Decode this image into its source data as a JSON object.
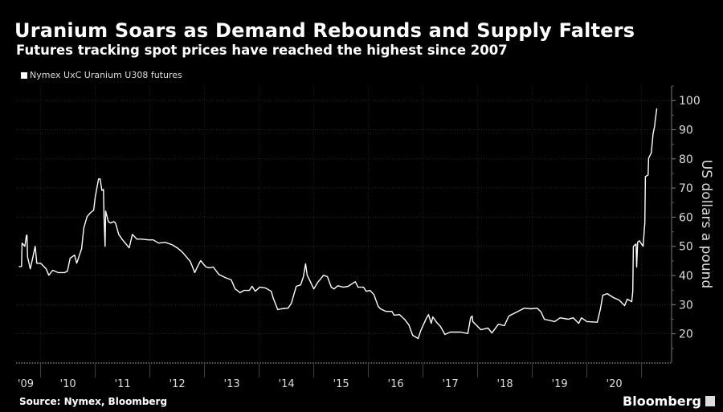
{
  "header": {
    "title": "Uranium Soars as Demand Rebounds and Supply Falters",
    "subtitle": "Futures tracking spot prices have reached the highest since 2007"
  },
  "footer": {
    "source": "Source: Nymex, Bloomberg",
    "logo": "Bloomberg"
  },
  "chart_data": {
    "type": "line",
    "title": "Uranium Soars as Demand Rebounds and Supply Falters",
    "subtitle": "Futures tracking spot prices have reached the highest since 2007",
    "xlabel": "",
    "ylabel": "US dollars a pound",
    "xlim": [
      2009.55,
      2021.55
    ],
    "ylim": [
      10,
      105
    ],
    "y_ticks": [
      20,
      30,
      40,
      50,
      60,
      70,
      80,
      90,
      100
    ],
    "x_tick_labels": [
      {
        "year": 2009,
        "label": "'09"
      },
      {
        "year": 2010,
        "label": "'10"
      },
      {
        "year": 2011,
        "label": "'11"
      },
      {
        "year": 2012,
        "label": "'12"
      },
      {
        "year": 2013,
        "label": "'13"
      },
      {
        "year": 2014,
        "label": "'14"
      },
      {
        "year": 2015,
        "label": "'15"
      },
      {
        "year": 2016,
        "label": "'16"
      },
      {
        "year": 2017,
        "label": "'17"
      },
      {
        "year": 2018,
        "label": "'18"
      },
      {
        "year": 2019,
        "label": "'19"
      },
      {
        "year": 2020,
        "label": "'20"
      }
    ],
    "grid": true,
    "y_axis_side": "right",
    "legend_position": "top-left",
    "background": "#000000",
    "line_color": "#ffffff",
    "series": [
      {
        "name": "Nymex UxC Uranium U308 futures",
        "x": [
          2009.6,
          2009.65,
          2009.66,
          2009.71,
          2009.74,
          2009.75,
          2009.76,
          2009.81,
          2009.85,
          2009.9,
          2009.93,
          2010.0,
          2010.1,
          2010.15,
          2010.22,
          2010.32,
          2010.44,
          2010.49,
          2010.54,
          2010.62,
          2010.66,
          2010.75,
          2010.79,
          2010.85,
          2010.91,
          2010.97,
          2011.0,
          2011.06,
          2011.09,
          2011.12,
          2011.15,
          2011.16,
          2011.18,
          2011.19,
          2011.24,
          2011.28,
          2011.34,
          2011.37,
          2011.43,
          2011.5,
          2011.62,
          2011.68,
          2011.76,
          2011.85,
          2011.97,
          2012.06,
          2012.16,
          2012.28,
          2012.41,
          2012.5,
          2012.59,
          2012.74,
          2012.82,
          2012.87,
          2012.93,
          2012.99,
          2013.03,
          2013.09,
          2013.16,
          2013.26,
          2013.38,
          2013.49,
          2013.56,
          2013.6,
          2013.65,
          2013.72,
          2013.82,
          2013.87,
          2013.93,
          2014.01,
          2014.12,
          2014.22,
          2014.26,
          2014.34,
          2014.41,
          2014.53,
          2014.59,
          2014.68,
          2014.76,
          2014.81,
          2014.85,
          2014.88,
          2014.93,
          2015.0,
          2015.07,
          2015.18,
          2015.25,
          2015.32,
          2015.37,
          2015.44,
          2015.54,
          2015.63,
          2015.76,
          2015.81,
          2015.91,
          2015.96,
          2016.03,
          2016.1,
          2016.18,
          2016.22,
          2016.32,
          2016.43,
          2016.47,
          2016.57,
          2016.66,
          2016.74,
          2016.81,
          2016.91,
          2016.96,
          2017.06,
          2017.1,
          2017.15,
          2017.18,
          2017.25,
          2017.32,
          2017.4,
          2017.5,
          2017.69,
          2017.82,
          2017.87,
          2017.9,
          2017.91,
          2018.06,
          2018.19,
          2018.26,
          2018.38,
          2018.49,
          2018.57,
          2018.72,
          2018.85,
          2018.97,
          2019.09,
          2019.16,
          2019.22,
          2019.41,
          2019.51,
          2019.66,
          2019.75,
          2019.85,
          2019.9,
          2020.0,
          2020.19,
          2020.25,
          2020.29,
          2020.37,
          2020.49,
          2020.59,
          2020.69,
          2020.74,
          2020.82,
          2020.84,
          2020.85,
          2020.9,
          2020.91,
          2020.93,
          2020.96,
          2021.03,
          2021.06,
          2021.07,
          2021.12,
          2021.13,
          2021.18,
          2021.21,
          2021.24,
          2021.25,
          2021.28
        ],
        "y": [
          43.1,
          43.1,
          51.1,
          50.0,
          53.8,
          53.8,
          46.4,
          42.3,
          45.6,
          50.0,
          44.2,
          44.2,
          42.3,
          40.1,
          41.8,
          41.0,
          41.0,
          41.5,
          45.9,
          47.0,
          44.2,
          49.2,
          56.3,
          60.2,
          61.5,
          62.4,
          67.0,
          73.1,
          73.1,
          69.2,
          69.5,
          60.2,
          50.0,
          62.1,
          58.5,
          58.0,
          58.5,
          58.0,
          54.1,
          52.2,
          49.5,
          54.1,
          52.5,
          52.5,
          52.2,
          52.2,
          51.1,
          51.4,
          50.5,
          49.5,
          48.1,
          44.8,
          41.0,
          43.0,
          45.1,
          43.7,
          42.9,
          42.6,
          42.9,
          40.4,
          39.3,
          38.5,
          35.4,
          34.9,
          34.1,
          34.9,
          34.9,
          36.3,
          34.6,
          36.0,
          35.7,
          34.6,
          32.1,
          28.3,
          28.6,
          28.8,
          30.5,
          36.3,
          36.8,
          39.6,
          44.0,
          40.1,
          38.2,
          35.4,
          37.6,
          40.1,
          39.6,
          36.0,
          35.4,
          36.5,
          36.0,
          36.3,
          37.9,
          36.0,
          36.0,
          34.6,
          34.9,
          33.5,
          29.4,
          28.6,
          27.7,
          27.7,
          26.4,
          26.6,
          25.0,
          23.1,
          19.5,
          18.4,
          21.2,
          25.3,
          26.6,
          23.6,
          25.8,
          23.9,
          22.5,
          19.8,
          20.6,
          20.6,
          20.1,
          25.5,
          26.1,
          24.2,
          21.4,
          22.0,
          20.3,
          23.3,
          22.8,
          26.1,
          27.5,
          28.8,
          28.6,
          28.8,
          27.5,
          25.0,
          24.2,
          25.5,
          25.0,
          25.5,
          23.6,
          25.5,
          24.2,
          24.0,
          28.8,
          33.2,
          33.8,
          32.4,
          31.6,
          29.7,
          31.9,
          31.0,
          34.6,
          50.0,
          50.8,
          42.9,
          51.5,
          51.9,
          50.0,
          58.2,
          73.9,
          74.5,
          80.2,
          82.1,
          88.5,
          91.2,
          93.1,
          97.3
        ]
      }
    ]
  }
}
